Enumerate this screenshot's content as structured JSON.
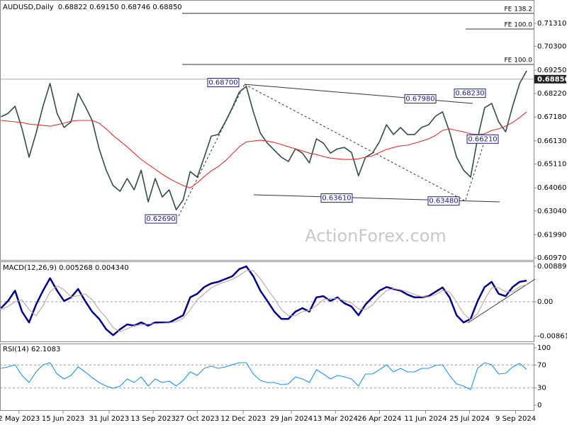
{
  "chart_data": [
    {
      "type": "line",
      "title": "AUDUSD,Daily",
      "subtitle": "0.68822 0.69150 0.68746 0.68850",
      "x": [
        "2023-04-14",
        "2023-04-21",
        "2023-04-28",
        "2023-05-05",
        "2023-05-12",
        "2023-05-19",
        "2023-05-26",
        "2023-06-02",
        "2023-06-09",
        "2023-06-16",
        "2023-06-23",
        "2023-06-30",
        "2023-07-07",
        "2023-07-14",
        "2023-07-21",
        "2023-07-28",
        "2023-08-04",
        "2023-08-11",
        "2023-08-18",
        "2023-08-25",
        "2023-09-01",
        "2023-09-08",
        "2023-09-15",
        "2023-09-22",
        "2023-09-29",
        "2023-10-06",
        "2023-10-13",
        "2023-10-20",
        "2023-10-27",
        "2023-11-03",
        "2023-11-10",
        "2023-11-17",
        "2023-11-24",
        "2023-12-01",
        "2023-12-08",
        "2023-12-15",
        "2023-12-22",
        "2023-12-29",
        "2024-01-05",
        "2024-01-12",
        "2024-01-19",
        "2024-01-26",
        "2024-02-02",
        "2024-02-09",
        "2024-02-16",
        "2024-02-23",
        "2024-03-01",
        "2024-03-08",
        "2024-03-15",
        "2024-03-22",
        "2024-03-29",
        "2024-04-05",
        "2024-04-12",
        "2024-04-19",
        "2024-04-26",
        "2024-05-03",
        "2024-05-10",
        "2024-05-17",
        "2024-05-24",
        "2024-05-31",
        "2024-06-07",
        "2024-06-14",
        "2024-06-21",
        "2024-06-28",
        "2024-07-05",
        "2024-07-12",
        "2024-07-19",
        "2024-07-26",
        "2024-08-02",
        "2024-08-09",
        "2024-08-16",
        "2024-08-23",
        "2024-08-30",
        "2024-09-06",
        "2024-09-13",
        "2024-09-20"
      ],
      "series": [
        {
          "color": "#2f4f3f",
          "values": [
            0.6719,
            0.6734,
            0.6766,
            0.6666,
            0.6541,
            0.6647,
            0.6766,
            0.6866,
            0.6734,
            0.6672,
            0.6697,
            0.6822,
            0.6766,
            0.6703,
            0.6578,
            0.6484,
            0.6416,
            0.6391,
            0.6447,
            0.6397,
            0.6484,
            0.6344,
            0.6447,
            0.6366,
            0.6397,
            0.6309,
            0.6353,
            0.6478,
            0.6453,
            0.6541,
            0.6634,
            0.6641,
            0.6697,
            0.6759,
            0.6828,
            0.6853,
            0.6741,
            0.6647,
            0.6603,
            0.6572,
            0.6541,
            0.6522,
            0.6578,
            0.6559,
            0.6516,
            0.6622,
            0.6603,
            0.6559,
            0.6578,
            0.6584,
            0.6562,
            0.6459,
            0.6541,
            0.6559,
            0.6609,
            0.6684,
            0.6641,
            0.6672,
            0.6641,
            0.6641,
            0.6672,
            0.6684,
            0.6722,
            0.6741,
            0.6653,
            0.6541,
            0.6484,
            0.6453,
            0.6625,
            0.6759,
            0.6778,
            0.6697,
            0.6653,
            0.6766,
            0.6866,
            0.6922
          ]
        },
        {
          "color": "#e03030",
          "values": [
            0.6703,
            0.67,
            0.6697,
            0.6694,
            0.6687,
            0.6684,
            0.6681,
            0.6678,
            0.6684,
            0.6691,
            0.67,
            0.6703,
            0.6703,
            0.6703,
            0.6691,
            0.6666,
            0.6637,
            0.6612,
            0.6587,
            0.6559,
            0.6531,
            0.6509,
            0.6488,
            0.6466,
            0.6447,
            0.6431,
            0.6416,
            0.6406,
            0.6428,
            0.6456,
            0.6481,
            0.65,
            0.6525,
            0.6556,
            0.6587,
            0.6609,
            0.6612,
            0.6616,
            0.6612,
            0.6606,
            0.6597,
            0.6587,
            0.6578,
            0.6569,
            0.6559,
            0.6553,
            0.6544,
            0.6537,
            0.6534,
            0.6531,
            0.6531,
            0.6534,
            0.6541,
            0.6547,
            0.6562,
            0.6575,
            0.6584,
            0.6591,
            0.6594,
            0.6603,
            0.6612,
            0.6622,
            0.6637,
            0.6659,
            0.6666,
            0.6659,
            0.6653,
            0.6644,
            0.6641,
            0.6644,
            0.6659,
            0.6666,
            0.6678,
            0.6694,
            0.6716,
            0.6741
          ]
        }
      ],
      "xlim": [
        "2023-04-13",
        "2024-09-27"
      ],
      "xticks": [
        {
          "value": "2023-05-02",
          "label": "2 May 2023"
        },
        {
          "value": "2023-06-15",
          "label": "15 Jun 2023"
        },
        {
          "value": "2023-07-31",
          "label": "31 Jul 2023"
        },
        {
          "value": "2023-09-13",
          "label": "13 Sep 2023"
        },
        {
          "value": "2023-10-27",
          "label": "27 Oct 2023"
        },
        {
          "value": "2023-12-12",
          "label": "12 Dec 2023"
        },
        {
          "value": "2024-01-29",
          "label": "29 Jan 2024"
        },
        {
          "value": "2024-03-13",
          "label": "13 Mar 2024"
        },
        {
          "value": "2024-04-26",
          "label": "26 Apr 2024"
        },
        {
          "value": "2024-06-11",
          "label": "11 Jun 2024"
        },
        {
          "value": "2024-07-25",
          "label": "25 Jul 2024"
        },
        {
          "value": "2024-09-09",
          "label": "9 Sep 2024"
        }
      ],
      "ylim": [
        0.6088,
        0.7234
      ],
      "yticks": [
        {
          "value": 0.7131,
          "label": "0.71310"
        },
        {
          "value": 0.703,
          "label": "0.70300"
        },
        {
          "value": 0.6925,
          "label": "0.69250"
        },
        {
          "value": 0.6822,
          "label": "0.68220"
        },
        {
          "value": 0.6718,
          "label": "0.67180"
        },
        {
          "value": 0.6613,
          "label": "0.66130"
        },
        {
          "value": 0.6511,
          "label": "0.65110"
        },
        {
          "value": 0.6406,
          "label": "0.64060"
        },
        {
          "value": 0.6304,
          "label": "0.63040"
        },
        {
          "value": 0.6199,
          "label": "0.61990"
        },
        {
          "value": 0.6097,
          "label": "0.60970"
        }
      ],
      "last_price": {
        "value": 0.6885,
        "label": "0.68850"
      },
      "annotations": [
        {
          "value": 0.687,
          "label": "0.68700"
        },
        {
          "value": 0.6269,
          "label": "0.62690"
        },
        {
          "value": 0.6361,
          "label": "0.63610"
        },
        {
          "value": 0.6348,
          "label": "0.63480"
        },
        {
          "value": 0.6798,
          "label": "0.67980"
        },
        {
          "value": 0.6823,
          "label": "0.68230"
        },
        {
          "value": 0.6621,
          "label": "0.66210"
        }
      ],
      "levels": [
        {
          "value": 0.7175,
          "label": "FE 138.2"
        },
        {
          "value": 0.7106,
          "label": "FE 100.0"
        },
        {
          "value": 0.695,
          "label": "FE 100.0"
        }
      ],
      "watermark": "ActionForex.com"
    },
    {
      "type": "line",
      "title": "MACD(12,26,9) 0.005268 0.004340",
      "series": [
        {
          "color": "#00008b",
          "values": [
            -0.0016,
            0.0002,
            0.0028,
            -0.0025,
            -0.0052,
            -0.0007,
            0.0028,
            0.0059,
            0.0028,
            0.0002,
            0.0011,
            0.0032,
            0.0002,
            -0.0025,
            -0.0043,
            -0.0069,
            -0.0084,
            -0.0069,
            -0.0057,
            -0.006,
            -0.0052,
            -0.006,
            -0.0052,
            -0.0052,
            -0.0052,
            -0.0043,
            -0.0034,
            0.0011,
            0.002,
            0.0037,
            0.0046,
            0.005,
            0.0057,
            0.0064,
            0.0082,
            0.0089,
            0.0064,
            0.0028,
            0.0002,
            -0.0025,
            -0.0043,
            -0.0043,
            -0.0025,
            -0.0016,
            -0.0025,
            0.0011,
            0.0014,
            0.0002,
            0.0011,
            -0.0004,
            -0.0012,
            -0.0034,
            -0.0007,
            0.0011,
            0.0028,
            0.0037,
            0.0032,
            0.0028,
            0.0018,
            0.0011,
            0.0011,
            0.0014,
            0.0025,
            0.0036,
            0.0011,
            -0.0034,
            -0.0052,
            -0.0043,
            0.0002,
            0.0037,
            0.005,
            0.002,
            0.0014,
            0.0037,
            0.005,
            0.0053
          ]
        },
        {
          "color": "#c8a0a0",
          "values": [
            -0.002,
            -0.0012,
            0.0,
            0.0005,
            -0.002,
            -0.0035,
            -0.001,
            0.0025,
            0.004,
            0.003,
            0.0012,
            0.0015,
            0.002,
            0.0005,
            -0.002,
            -0.004,
            -0.0065,
            -0.0075,
            -0.0068,
            -0.006,
            -0.0058,
            -0.0056,
            -0.0055,
            -0.0054,
            -0.0053,
            -0.005,
            -0.0042,
            -0.002,
            0.0005,
            0.002,
            0.0035,
            0.0044,
            0.005,
            0.0056,
            0.0066,
            0.0078,
            0.0078,
            0.0058,
            0.0032,
            0.0008,
            -0.002,
            -0.0035,
            -0.0035,
            -0.0025,
            -0.0022,
            -0.001,
            0.0005,
            0.0008,
            0.0008,
            0.0003,
            -0.0003,
            -0.0018,
            -0.002,
            -0.0008,
            0.0012,
            0.0028,
            0.0033,
            0.003,
            0.0025,
            0.0018,
            0.0013,
            0.0012,
            0.0018,
            0.0028,
            0.0025,
            0.0,
            -0.003,
            -0.0045,
            -0.003,
            0.0005,
            0.0035,
            0.0035,
            0.0025,
            0.0025,
            0.0038,
            0.0043
          ]
        }
      ],
      "ylim": [
        -0.01014,
        0.00996
      ],
      "yticks": [
        0.008896,
        {
          "value": 0,
          "label": "0.00"
        },
        -0.008612
      ],
      "levels": [
        0
      ]
    },
    {
      "type": "line",
      "title": "RSI(14) 62.1083",
      "series": [
        {
          "color": "#1e90ff",
          "values": [
            64.2,
            66.7,
            70.4,
            51.9,
            39.5,
            58.0,
            70.4,
            74.1,
            54.3,
            45.7,
            51.9,
            66.7,
            58.0,
            48.1,
            39.5,
            33.3,
            29.6,
            33.3,
            45.7,
            39.5,
            49.4,
            33.3,
            45.7,
            39.5,
            42.0,
            33.3,
            43.2,
            58.0,
            51.9,
            64.2,
            67.9,
            64.2,
            66.7,
            70.4,
            74.1,
            74.1,
            54.3,
            43.2,
            39.5,
            39.5,
            35.8,
            37.0,
            49.4,
            45.7,
            39.5,
            61.7,
            54.3,
            45.7,
            51.9,
            49.4,
            45.7,
            33.3,
            54.3,
            54.3,
            61.7,
            70.4,
            58.0,
            64.2,
            58.0,
            58.0,
            64.2,
            64.2,
            69.1,
            70.4,
            51.9,
            37.0,
            33.3,
            27.2,
            64.2,
            74.1,
            70.4,
            54.3,
            55.6,
            66.7,
            72.8,
            62.1
          ]
        }
      ],
      "ylim": [
        -9.9,
        106.2
      ],
      "yticks": [
        100,
        70,
        30,
        0
      ],
      "levels": [
        70,
        30
      ]
    }
  ]
}
